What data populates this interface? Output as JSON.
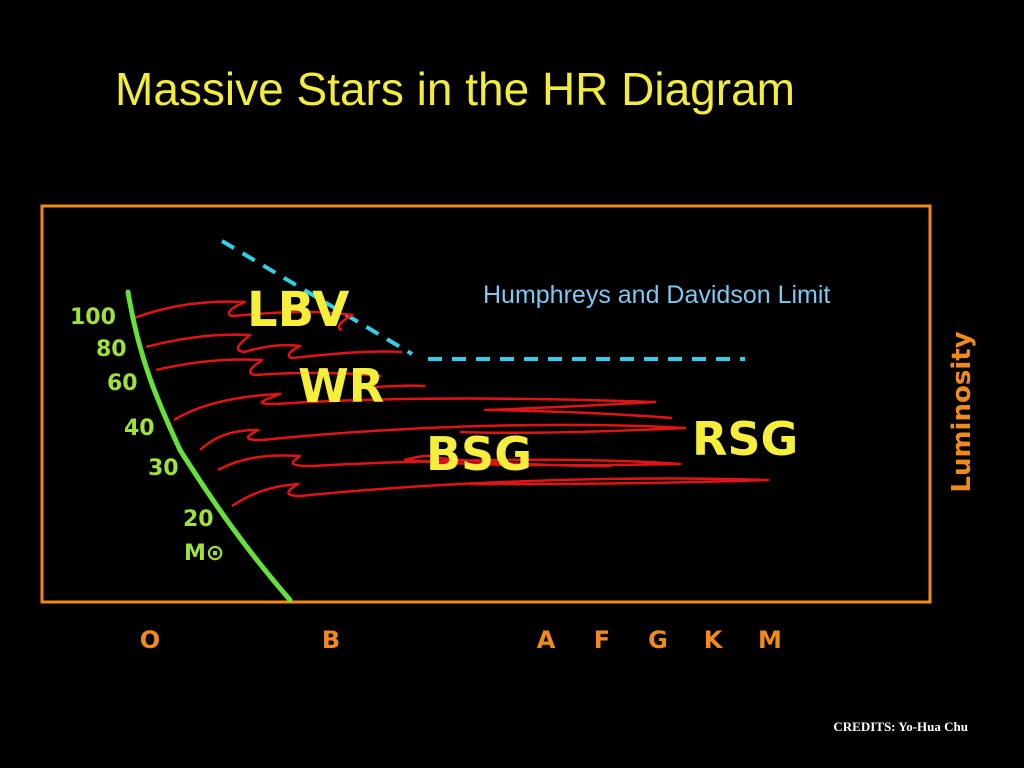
{
  "title": "Massive Stars in the HR Diagram",
  "credits": "CREDITS: Yo-Hua Chu",
  "y_axis_label": "Luminosity",
  "limit_label": "Humphreys and Davidson Limit",
  "mass_labels": [
    "100",
    "80",
    "60",
    "40",
    "30",
    "20"
  ],
  "mass_unit": "M⊙",
  "regions": [
    "LBV",
    "WR",
    "BSG",
    "RSG"
  ],
  "spectral_classes": [
    "O",
    "B",
    "A",
    "F",
    "G",
    "K",
    "M"
  ],
  "colors": {
    "title": "#f2ec3c",
    "frame": "#f08a1c",
    "main_sequence": "#66e03a",
    "tracks": "#e01414",
    "limit": "#2fd0e8",
    "limit_text": "#7ec8f2",
    "region_text": "#f5ee3a",
    "axis_text": "#f08a1c",
    "mass_text": "#9ee23a"
  }
}
